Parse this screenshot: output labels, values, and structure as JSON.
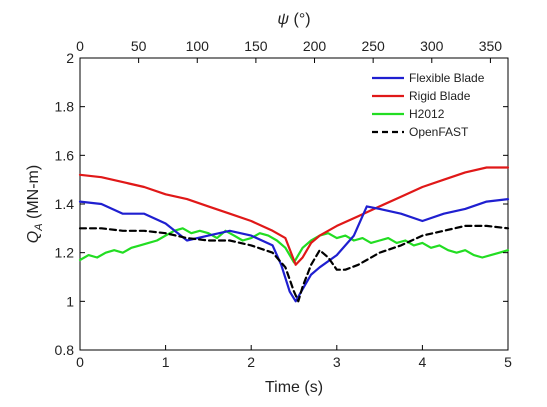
{
  "chart_data": {
    "type": "line",
    "xlabel": "Time (s)",
    "ylabel_main": "Q",
    "ylabel_sub": "A",
    "ylabel_unit": " (MN-m)",
    "top_xlabel_main": "ψ",
    "top_xlabel_unit": " (°)",
    "xlim": [
      0,
      5
    ],
    "ylim": [
      0.8,
      2
    ],
    "top_xlim": [
      0,
      365
    ],
    "x_ticks": [
      "0",
      "1",
      "2",
      "3",
      "4",
      "5"
    ],
    "y_ticks": [
      "0.8",
      "1",
      "1.2",
      "1.4",
      "1.6",
      "1.8",
      "2"
    ],
    "top_ticks": [
      "0",
      "50",
      "100",
      "150",
      "200",
      "250",
      "300",
      "350"
    ],
    "grid": false,
    "legend_position": "top-right",
    "series": [
      {
        "name": "Flexible Blade",
        "color": "#1f1fd0",
        "dash": "solid",
        "x": [
          0,
          0.25,
          0.5,
          0.75,
          1.0,
          1.25,
          1.5,
          1.75,
          2.0,
          2.25,
          2.35,
          2.45,
          2.52,
          2.6,
          2.7,
          2.8,
          3.0,
          3.2,
          3.35,
          3.5,
          3.75,
          4.0,
          4.25,
          4.5,
          4.75,
          5.0
        ],
        "y": [
          1.41,
          1.4,
          1.36,
          1.36,
          1.32,
          1.25,
          1.27,
          1.29,
          1.27,
          1.23,
          1.15,
          1.04,
          1.0,
          1.05,
          1.11,
          1.14,
          1.19,
          1.27,
          1.39,
          1.38,
          1.36,
          1.33,
          1.36,
          1.38,
          1.41,
          1.42
        ]
      },
      {
        "name": "Rigid Blade",
        "color": "#e01818",
        "dash": "solid",
        "x": [
          0,
          0.25,
          0.5,
          0.75,
          1.0,
          1.25,
          1.5,
          1.75,
          2.0,
          2.25,
          2.4,
          2.52,
          2.6,
          2.7,
          2.8,
          3.0,
          3.25,
          3.5,
          3.75,
          4.0,
          4.25,
          4.5,
          4.75,
          5.0
        ],
        "y": [
          1.52,
          1.51,
          1.49,
          1.47,
          1.44,
          1.42,
          1.39,
          1.36,
          1.33,
          1.29,
          1.26,
          1.15,
          1.18,
          1.24,
          1.27,
          1.31,
          1.35,
          1.39,
          1.43,
          1.47,
          1.5,
          1.53,
          1.55,
          1.55
        ]
      },
      {
        "name": "H2012",
        "color": "#22dd22",
        "dash": "solid",
        "x": [
          0,
          0.1,
          0.2,
          0.3,
          0.4,
          0.5,
          0.6,
          0.7,
          0.8,
          0.9,
          1.0,
          1.1,
          1.2,
          1.3,
          1.4,
          1.5,
          1.6,
          1.7,
          1.8,
          1.9,
          2.0,
          2.1,
          2.2,
          2.3,
          2.4,
          2.5,
          2.55,
          2.6,
          2.7,
          2.8,
          2.9,
          3.0,
          3.1,
          3.2,
          3.3,
          3.4,
          3.5,
          3.6,
          3.7,
          3.8,
          3.9,
          4.0,
          4.1,
          4.2,
          4.3,
          4.4,
          4.5,
          4.6,
          4.7,
          4.8,
          4.9,
          5.0
        ],
        "y": [
          1.17,
          1.19,
          1.18,
          1.2,
          1.21,
          1.2,
          1.22,
          1.23,
          1.24,
          1.25,
          1.27,
          1.29,
          1.3,
          1.28,
          1.29,
          1.28,
          1.26,
          1.29,
          1.27,
          1.25,
          1.26,
          1.28,
          1.27,
          1.25,
          1.22,
          1.16,
          1.19,
          1.22,
          1.25,
          1.27,
          1.28,
          1.26,
          1.27,
          1.25,
          1.26,
          1.24,
          1.25,
          1.26,
          1.24,
          1.25,
          1.23,
          1.24,
          1.22,
          1.23,
          1.21,
          1.2,
          1.21,
          1.19,
          1.18,
          1.19,
          1.2,
          1.21
        ]
      },
      {
        "name": "OpenFAST",
        "color": "#000000",
        "dash": "dashed",
        "x": [
          0,
          0.25,
          0.5,
          0.75,
          1.0,
          1.25,
          1.5,
          1.75,
          2.0,
          2.25,
          2.4,
          2.5,
          2.55,
          2.6,
          2.7,
          2.8,
          2.9,
          3.0,
          3.1,
          3.25,
          3.5,
          3.75,
          4.0,
          4.25,
          4.5,
          4.75,
          5.0
        ],
        "y": [
          1.3,
          1.3,
          1.29,
          1.29,
          1.28,
          1.26,
          1.25,
          1.25,
          1.23,
          1.2,
          1.14,
          1.04,
          1.0,
          1.06,
          1.15,
          1.21,
          1.18,
          1.13,
          1.13,
          1.15,
          1.2,
          1.23,
          1.27,
          1.29,
          1.31,
          1.31,
          1.3
        ]
      }
    ]
  }
}
